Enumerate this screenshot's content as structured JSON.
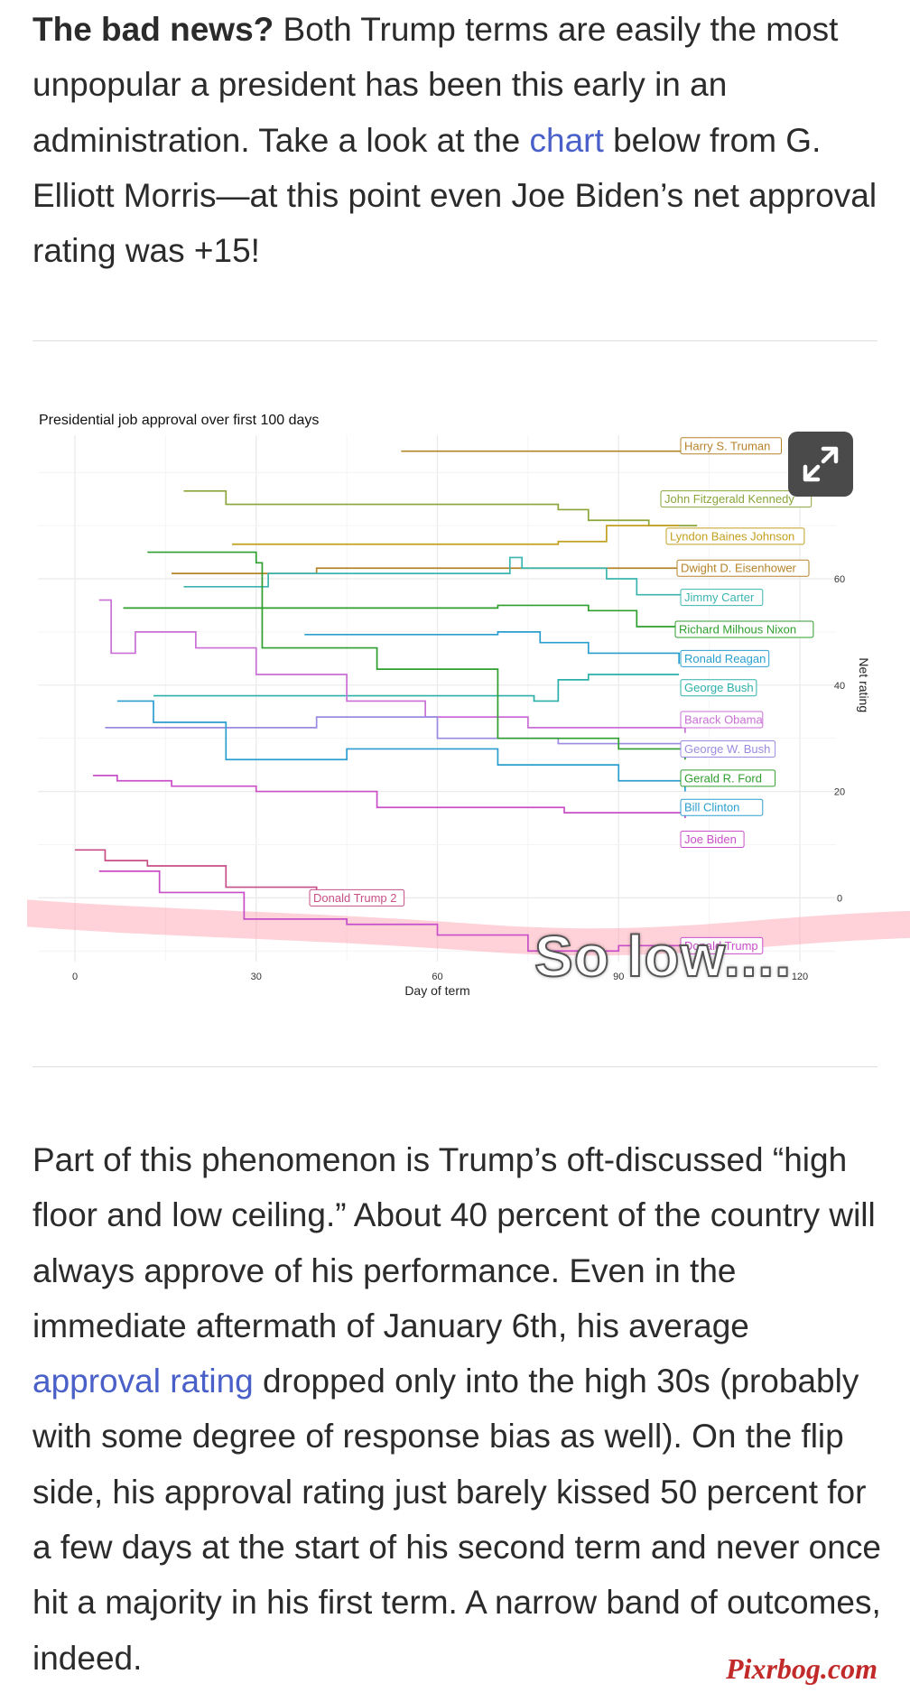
{
  "article": {
    "p1_bold": "The bad news?",
    "p1_a": " Both Trump terms are easily the most unpopular a president has been this early in an administration. Take a look at the ",
    "p1_link": "chart",
    "p1_b": " below from G. Elliott Morris—at this point even Joe Biden’s net approval rating was +15!",
    "p2_a": "Part of this phenomenon is Trump’s oft-discussed “high floor and low ceiling.” About 40 percent of the country will always approve of his performance. Even in the immediate aftermath of January 6th, his average ",
    "p2_link": "approval rating",
    "p2_b": " dropped only into the high 30s (probably with some degree of response bias as well). On the flip side, his approval rating just barely kissed 50 percent for a few days at the start of his second term and never once hit a majority in his first term. A narrow band of outcomes, indeed."
  },
  "overlay": {
    "annotation": "So low....",
    "watermark": "Pixrbog.com"
  },
  "icons": {
    "expand": "expand-arrows-icon"
  },
  "colors": {
    "link": "#4a60c9",
    "highlight": "#ff9aa8"
  },
  "chart_data": {
    "type": "line",
    "title": "Presidential job approval over first 100 days",
    "xlabel": "Day of term",
    "ylabel": "Net rating",
    "xlim": [
      0,
      120
    ],
    "ylim": [
      -12,
      87
    ],
    "xticks": [
      0,
      30,
      60,
      90,
      120
    ],
    "yticks": [
      0,
      20,
      40,
      60
    ],
    "grid": true,
    "series": [
      {
        "name": "Harry S. Truman",
        "color": "#b5832a",
        "points": [
          [
            54,
            84
          ],
          [
            101,
            84
          ]
        ]
      },
      {
        "name": "John Fitzgerald Kennedy",
        "color": "#8aa53a",
        "points": [
          [
            18,
            76.5
          ],
          [
            24,
            76.5
          ],
          [
            25,
            74
          ],
          [
            80,
            73
          ],
          [
            85,
            71
          ],
          [
            95,
            70
          ],
          [
            103,
            70
          ]
        ]
      },
      {
        "name": "Lyndon Baines Johnson",
        "color": "#c4a020",
        "points": [
          [
            26,
            66.5
          ],
          [
            80,
            67
          ],
          [
            88,
            70
          ],
          [
            100,
            70
          ]
        ]
      },
      {
        "name": "Dwight D. Eisenhower",
        "color": "#b5832a",
        "points": [
          [
            16,
            61
          ],
          [
            38,
            61
          ],
          [
            40,
            62
          ],
          [
            100,
            62
          ]
        ]
      },
      {
        "name": "Jimmy Carter",
        "color": "#3cb5b0",
        "points": [
          [
            18,
            58.5
          ],
          [
            29,
            58.5
          ],
          [
            32,
            61
          ],
          [
            72,
            64
          ],
          [
            74,
            62
          ],
          [
            88,
            60
          ],
          [
            93,
            57
          ],
          [
            101,
            55
          ]
        ]
      },
      {
        "name": "Richard Milhous Nixon",
        "color": "#2e9e2e",
        "points": [
          [
            8,
            54.5
          ],
          [
            70,
            55
          ],
          [
            85,
            54
          ],
          [
            93,
            51
          ],
          [
            101,
            51
          ]
        ]
      },
      {
        "name": "Ronald Reagan",
        "color": "#2a9fcf",
        "points": [
          [
            38,
            49.5
          ],
          [
            70,
            50
          ],
          [
            77,
            48
          ],
          [
            85,
            46
          ],
          [
            100,
            44
          ]
        ]
      },
      {
        "name": "George Bush",
        "color": "#2ab0a8",
        "points": [
          [
            13,
            38
          ],
          [
            76,
            37
          ],
          [
            80,
            41
          ],
          [
            85,
            42
          ],
          [
            100,
            42
          ]
        ]
      },
      {
        "name": "Barack Obama",
        "color": "#c96fd6",
        "points": [
          [
            4,
            56
          ],
          [
            6,
            46
          ],
          [
            10,
            50
          ],
          [
            20,
            47
          ],
          [
            30,
            42
          ],
          [
            45,
            37
          ],
          [
            58,
            34
          ],
          [
            75,
            32
          ],
          [
            90,
            32
          ],
          [
            101,
            31
          ]
        ]
      },
      {
        "name": "George W. Bush",
        "color": "#9b8ae0",
        "points": [
          [
            5,
            32
          ],
          [
            20,
            32
          ],
          [
            40,
            34
          ],
          [
            60,
            30
          ],
          [
            80,
            29
          ],
          [
            101,
            27
          ]
        ]
      },
      {
        "name": "Gerald R. Ford",
        "color": "#2e9e2e",
        "points": [
          [
            12,
            65
          ],
          [
            30,
            63
          ],
          [
            31,
            47
          ],
          [
            50,
            43
          ],
          [
            70,
            30
          ],
          [
            90,
            28
          ],
          [
            101,
            26
          ]
        ]
      },
      {
        "name": "Bill Clinton",
        "color": "#2a9fcf",
        "points": [
          [
            7,
            37
          ],
          [
            13,
            33
          ],
          [
            25,
            26
          ],
          [
            45,
            28
          ],
          [
            70,
            25
          ],
          [
            90,
            22
          ],
          [
            101,
            20
          ]
        ]
      },
      {
        "name": "Joe Biden",
        "color": "#c94fc9",
        "points": [
          [
            3,
            23
          ],
          [
            7,
            22
          ],
          [
            16,
            21
          ],
          [
            30,
            20
          ],
          [
            50,
            17
          ],
          [
            65,
            17
          ],
          [
            81,
            16
          ],
          [
            101,
            15
          ]
        ]
      },
      {
        "name": "Donald Trump 2",
        "color": "#c84f86",
        "points": [
          [
            0,
            9
          ],
          [
            5,
            7
          ],
          [
            12,
            6
          ],
          [
            25,
            2
          ],
          [
            40,
            1
          ]
        ]
      },
      {
        "name": "Donald Trump",
        "color": "#c94fc9",
        "points": [
          [
            4,
            5
          ],
          [
            14,
            1
          ],
          [
            28,
            -4
          ],
          [
            45,
            -5
          ],
          [
            60,
            -7
          ],
          [
            75,
            -10
          ],
          [
            90,
            -9
          ],
          [
            101,
            -8
          ]
        ]
      }
    ]
  }
}
